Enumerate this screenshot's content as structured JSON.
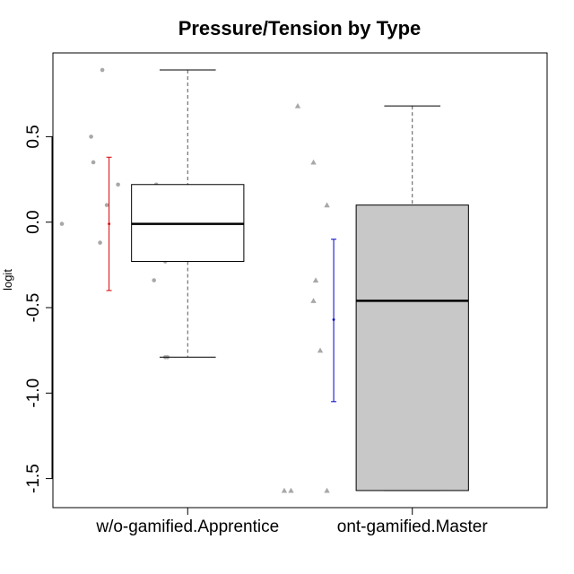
{
  "chart_data": {
    "type": "box",
    "title": "Pressure/Tension by Type",
    "xlabel": "",
    "ylabel": "logit",
    "ylim": [
      -1.67,
      0.99
    ],
    "yticks": [
      -1.5,
      -1.0,
      -0.5,
      0.0,
      0.5
    ],
    "ytick_labels": [
      "-1.5",
      "-1.0",
      "-0.5",
      "0.0",
      "0.5"
    ],
    "categories": [
      "w/o-gamified.Apprentice",
      "ont-gamified.Master"
    ],
    "boxes": [
      {
        "name": "w/o-gamified.Apprentice",
        "min": -0.79,
        "q1": -0.23,
        "median": -0.01,
        "q3": 0.22,
        "max": 0.89,
        "fill": "#ffffff",
        "points": [
          {
            "x": -0.38,
            "y": 0.89
          },
          {
            "x": -0.43,
            "y": 0.5
          },
          {
            "x": -0.42,
            "y": 0.35
          },
          {
            "x": -0.31,
            "y": 0.22
          },
          {
            "x": -0.14,
            "y": 0.22
          },
          {
            "x": -0.36,
            "y": 0.1
          },
          {
            "x": -0.56,
            "y": -0.01
          },
          {
            "x": -0.39,
            "y": -0.12
          },
          {
            "x": -0.12,
            "y": -0.12
          },
          {
            "x": -0.1,
            "y": -0.23
          },
          {
            "x": -0.15,
            "y": -0.34
          },
          {
            "x": -0.1,
            "y": -0.79
          },
          {
            "x": -0.09,
            "y": -0.79
          }
        ],
        "point_shape": "circle",
        "mean": -0.01,
        "ci_low": -0.4,
        "ci_high": 0.38,
        "ci_color": "#dd0000"
      },
      {
        "name": "ont-gamified.Master",
        "min": -1.57,
        "q1": -1.57,
        "median": -0.46,
        "q3": 0.1,
        "max": 0.68,
        "fill": "#c8c8c8",
        "points": [
          {
            "x": -0.51,
            "y": 0.68
          },
          {
            "x": -0.44,
            "y": 0.35
          },
          {
            "x": -0.38,
            "y": 0.1
          },
          {
            "x": -0.43,
            "y": -0.34
          },
          {
            "x": -0.44,
            "y": -0.46
          },
          {
            "x": -0.41,
            "y": -0.75
          },
          {
            "x": -0.57,
            "y": -1.57
          },
          {
            "x": -0.54,
            "y": -1.57
          },
          {
            "x": -0.38,
            "y": -1.57
          }
        ],
        "point_shape": "triangle",
        "mean": -0.57,
        "ci_low": -1.05,
        "ci_high": -0.1,
        "ci_color": "#0000cc"
      }
    ],
    "point_color": "#a8a8a8",
    "grid": false,
    "legend": "none"
  }
}
